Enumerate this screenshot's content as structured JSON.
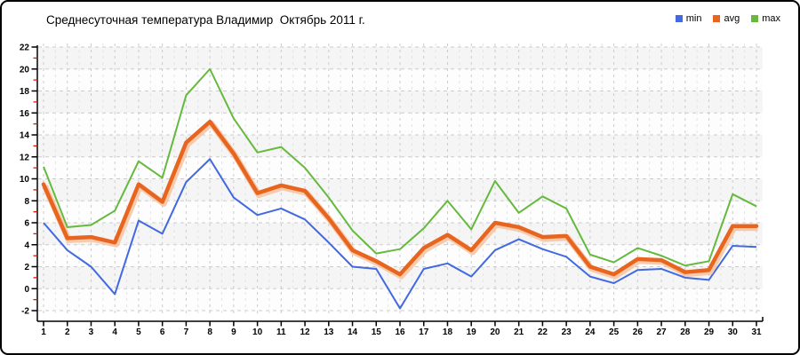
{
  "chart_data": {
    "type": "line",
    "title": "Среднесуточная температура Владимир  Октябрь 2011 г.",
    "xlabel": "",
    "ylabel": "",
    "x": [
      1,
      2,
      3,
      4,
      5,
      6,
      7,
      8,
      9,
      10,
      11,
      12,
      13,
      14,
      15,
      16,
      17,
      18,
      19,
      20,
      21,
      22,
      23,
      24,
      25,
      26,
      27,
      28,
      29,
      30,
      31
    ],
    "ylim": [
      -2,
      22
    ],
    "ytick_step": 2,
    "grid": true,
    "legend_position": "top-right",
    "background_bands": [
      "#f5f5f5",
      "#fdfdfd"
    ],
    "gridline_color": "#cbcbcb",
    "minor_gridline_color": "#e3e3e3",
    "axis_colors": {
      "axis_line": "#000000",
      "major_tick": "#000000",
      "minor_tick": "#dd1500"
    },
    "series": [
      {
        "name": "min",
        "color": "#4169e1",
        "width": 2,
        "values": [
          6.0,
          3.5,
          2.0,
          -0.5,
          6.2,
          5.0,
          9.7,
          11.8,
          8.3,
          6.7,
          7.3,
          6.3,
          4.2,
          2.0,
          1.8,
          -1.8,
          1.8,
          2.3,
          1.1,
          3.5,
          4.5,
          3.6,
          2.9,
          1.1,
          0.5,
          1.7,
          1.8,
          1.0,
          0.8,
          3.9,
          3.8
        ]
      },
      {
        "name": "avg",
        "color": "#e8651f",
        "width": 4.5,
        "halo_color": "#f6c3a0",
        "values": [
          9.5,
          4.6,
          4.7,
          4.2,
          9.5,
          7.9,
          13.3,
          15.2,
          12.3,
          8.7,
          9.4,
          8.9,
          6.4,
          3.5,
          2.5,
          1.3,
          3.7,
          4.9,
          3.5,
          6.0,
          5.6,
          4.7,
          4.8,
          2.0,
          1.3,
          2.7,
          2.6,
          1.5,
          1.7,
          5.7,
          5.7
        ]
      },
      {
        "name": "max",
        "color": "#65ba3e",
        "width": 2,
        "values": [
          11.1,
          5.6,
          5.8,
          7.1,
          11.6,
          10.1,
          17.6,
          20.0,
          15.5,
          12.4,
          12.9,
          11.0,
          8.3,
          5.3,
          3.2,
          3.6,
          5.5,
          8.0,
          5.4,
          9.8,
          6.9,
          8.4,
          7.3,
          3.1,
          2.4,
          3.7,
          3.0,
          2.1,
          2.5,
          8.6,
          7.5
        ]
      }
    ]
  }
}
